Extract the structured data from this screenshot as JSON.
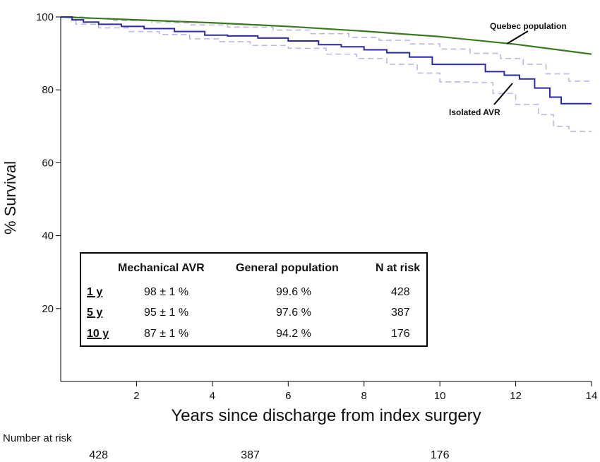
{
  "chart_data": {
    "type": "line",
    "title": "",
    "xlabel": "Years since discharge from index surgery",
    "ylabel": "% Survival",
    "xlim": [
      0,
      14
    ],
    "ylim": [
      0,
      100
    ],
    "x_ticks": [
      2,
      4,
      6,
      8,
      10,
      12,
      14
    ],
    "y_ticks": [
      20,
      40,
      60,
      80,
      100
    ],
    "colors": {
      "quebec": "#3a7a1e",
      "avr": "#2a2aa8",
      "ci": "#b8b8e6",
      "axis": "#000000"
    },
    "series": [
      {
        "name": "Quebec population",
        "style": "solid",
        "x": [
          0,
          2,
          4,
          6,
          8,
          10,
          12,
          14
        ],
        "y": [
          100,
          99.2,
          98.4,
          97.4,
          96.1,
          94.6,
          92.5,
          89.8
        ]
      },
      {
        "name": "Isolated AVR",
        "style": "step",
        "x": [
          0,
          0.3,
          0.6,
          1.0,
          1.6,
          2.2,
          3.0,
          3.8,
          4.4,
          5.2,
          6.0,
          6.8,
          7.4,
          8.0,
          8.6,
          9.2,
          9.8,
          10.6,
          11.2,
          11.7,
          12.1,
          12.5,
          12.9,
          13.2,
          14.0
        ],
        "y": [
          100,
          99.2,
          98.6,
          98.0,
          97.4,
          96.8,
          96.0,
          95.0,
          94.8,
          94.2,
          93.4,
          92.4,
          91.8,
          91.0,
          90.2,
          89.0,
          87.0,
          87.0,
          85.0,
          84.0,
          83.0,
          80.5,
          78.0,
          76.2,
          76.2
        ]
      },
      {
        "name": "Isolated AVR upper CI",
        "style": "dashed-step",
        "x": [
          0,
          0.6,
          1.4,
          2.4,
          3.4,
          4.4,
          5.6,
          6.6,
          7.6,
          8.4,
          9.2,
          10.0,
          10.8,
          11.6,
          12.2,
          12.8,
          13.4,
          14.0
        ],
        "y": [
          100,
          99.6,
          99.0,
          98.4,
          97.8,
          97.2,
          96.4,
          95.4,
          94.4,
          93.6,
          92.6,
          91.2,
          90.0,
          88.6,
          87.0,
          84.4,
          82.4,
          82.4
        ]
      },
      {
        "name": "Isolated AVR lower CI",
        "style": "dashed-step",
        "x": [
          0,
          0.4,
          1.0,
          1.8,
          2.6,
          3.4,
          4.2,
          5.0,
          6.0,
          7.0,
          7.8,
          8.6,
          9.4,
          10.0,
          10.8,
          11.4,
          12.0,
          12.6,
          13.0,
          13.4,
          14.0
        ],
        "y": [
          100,
          98.0,
          97.0,
          96.0,
          95.2,
          94.0,
          93.2,
          92.2,
          91.4,
          89.8,
          88.6,
          87.0,
          84.6,
          82.2,
          82.0,
          79.0,
          76.0,
          73.2,
          70.0,
          68.6,
          68.6
        ]
      }
    ],
    "annotations": {
      "quebec_label": "Quebec population",
      "avr_label": "Isolated AVR"
    },
    "table": {
      "headers": [
        "Mechanical AVR",
        "General population",
        "N at risk"
      ],
      "rows": [
        {
          "label": "1 y",
          "avr": "98 ± 1 %",
          "general": "99.6 %",
          "n": "428"
        },
        {
          "label": "5 y",
          "avr": "95 ± 1 %",
          "general": "97.6 %",
          "n": "387"
        },
        {
          "label": "10 y",
          "avr": "87 ± 1 %",
          "general": "94.2 %",
          "n": "176"
        }
      ]
    },
    "number_at_risk": {
      "title": "Number at risk",
      "values": [
        {
          "year": 1,
          "n": "428"
        },
        {
          "year": 5,
          "n": "387"
        },
        {
          "year": 10,
          "n": "176"
        }
      ]
    }
  }
}
